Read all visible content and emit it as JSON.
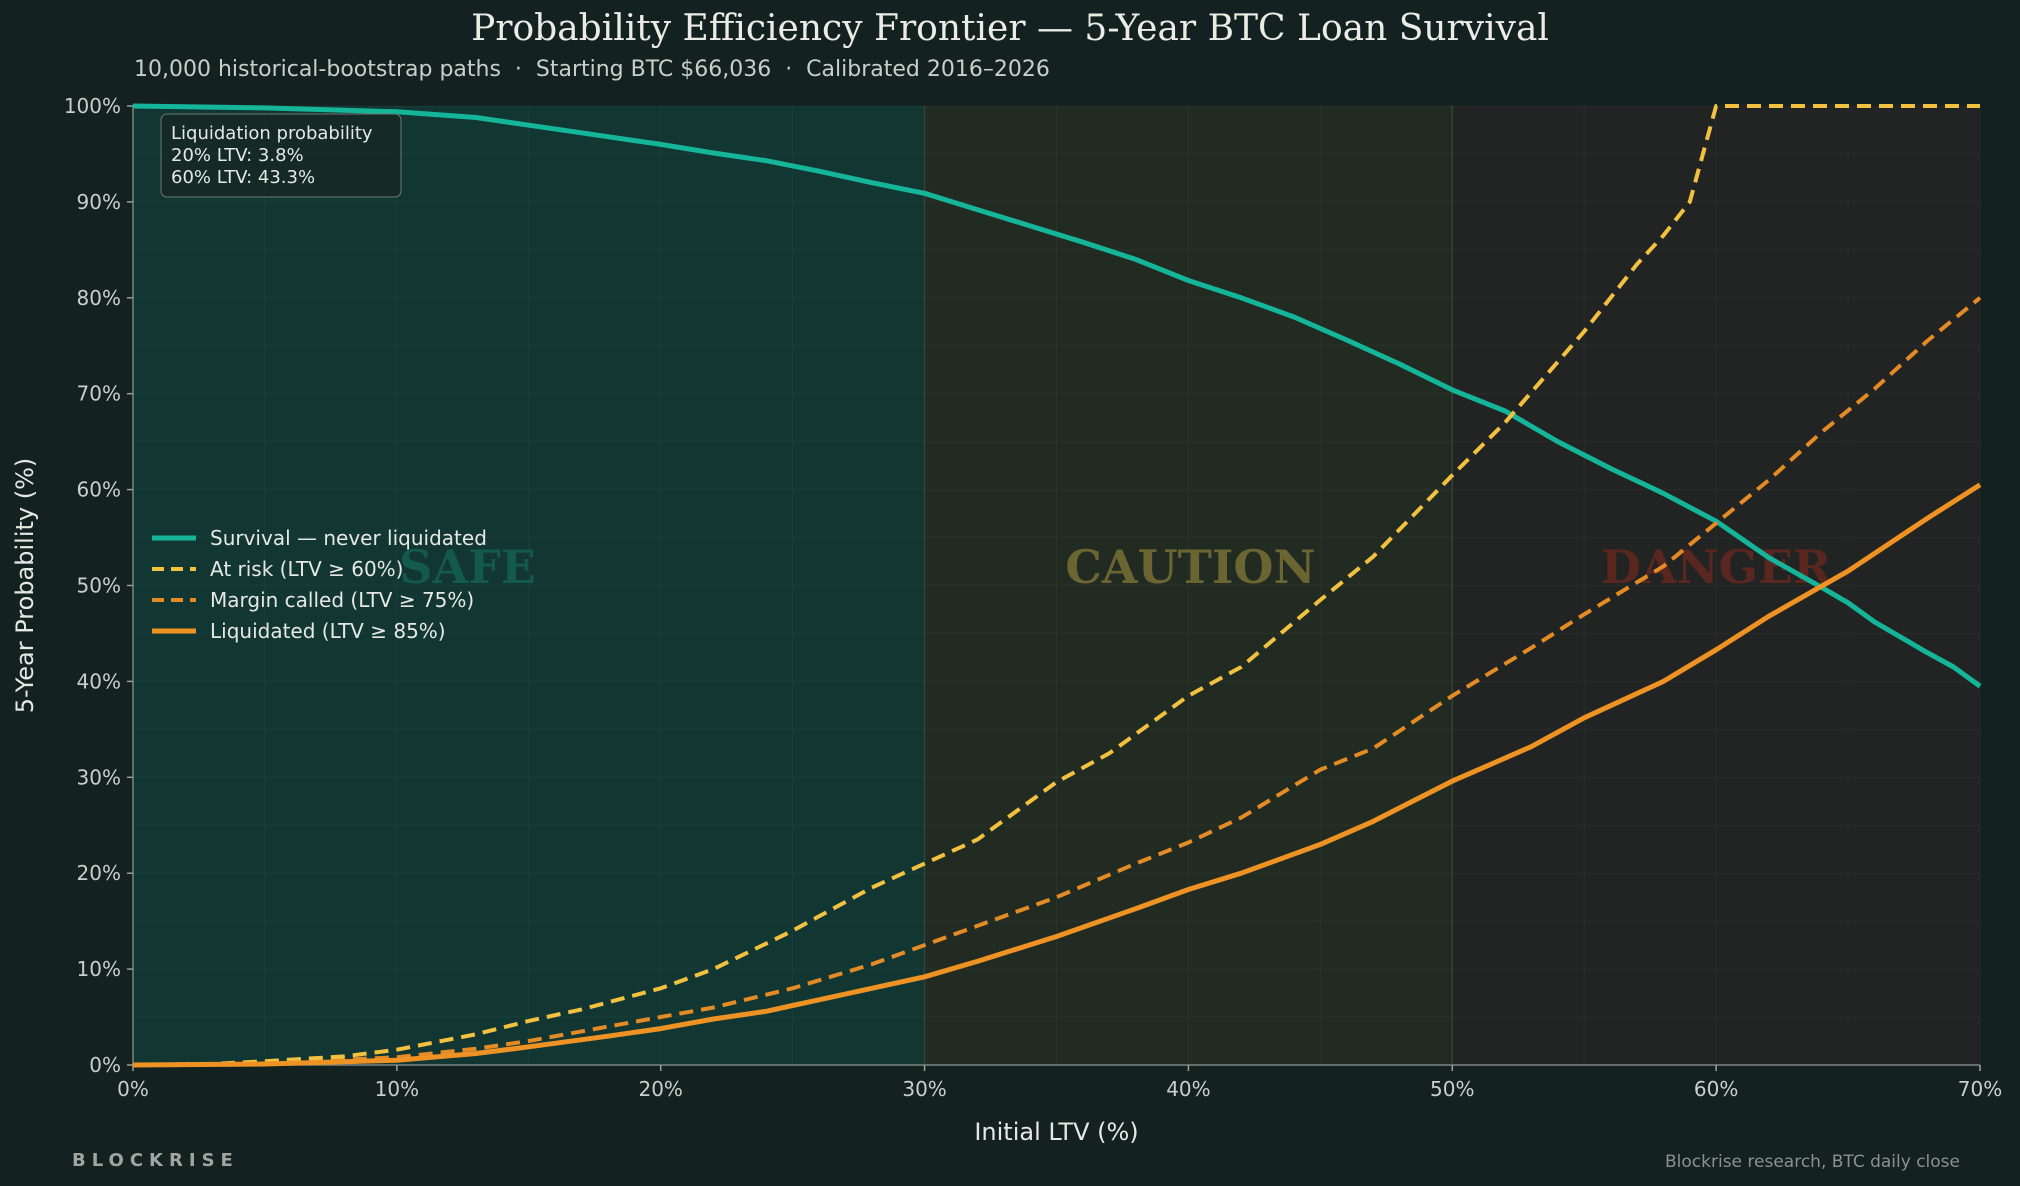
{
  "header": {
    "title": "Probability Efficiency Frontier — 5-Year BTC Loan Survival",
    "subtitle": "10,000 historical-bootstrap paths  ·  Starting BTC $66,036  ·  Calibrated 2016–2026"
  },
  "footer": {
    "brand": "BLOCKRISE",
    "source": "Blockrise research, BTC daily close"
  },
  "annotation": {
    "title": "Liquidation probability",
    "line1": "20% LTV: 3.8%",
    "line2": "60% LTV: 43.3%"
  },
  "colors": {
    "background": "#132120",
    "survival": "#15b59a",
    "at_risk": "#f2c140",
    "margin_called": "#e58b25",
    "liquidated": "#ef9224",
    "safe_zone": "#123631",
    "caution_zone": "#212b22",
    "danger_zone": "#222423"
  },
  "chart_data": {
    "type": "line",
    "title": "Probability Efficiency Frontier — 5-Year BTC Loan Survival",
    "xlabel": "Initial LTV (%)",
    "ylabel": "5-Year Probability (%)",
    "xlim": [
      0,
      70
    ],
    "ylim": [
      0,
      100
    ],
    "grid": true,
    "legend_position": "middle-left",
    "xticks": [
      "0%",
      "10%",
      "20%",
      "30%",
      "40%",
      "50%",
      "60%",
      "70%"
    ],
    "yticks": [
      "0%",
      "10%",
      "20%",
      "30%",
      "40%",
      "50%",
      "60%",
      "70%",
      "80%",
      "90%",
      "100%"
    ],
    "zones": [
      {
        "label": "SAFE",
        "from": 0,
        "to": 30
      },
      {
        "label": "CAUTION",
        "from": 30,
        "to": 50
      },
      {
        "label": "DANGER",
        "from": 50,
        "to": 70
      }
    ],
    "series": [
      {
        "name": "Survival — never liquidated",
        "style": "solid",
        "x": [
          0,
          5,
          10,
          13,
          15,
          18,
          20,
          22,
          24,
          26,
          28,
          30,
          32,
          34,
          36,
          38,
          40,
          42,
          44,
          46,
          48,
          50,
          52,
          54,
          56,
          58,
          60,
          62,
          64,
          65,
          66,
          68,
          69,
          70
        ],
        "y": [
          100,
          99.8,
          99.4,
          98.8,
          98.0,
          96.8,
          96.0,
          95.1,
          94.3,
          93.2,
          92.0,
          90.9,
          89.2,
          87.5,
          85.8,
          84.0,
          81.8,
          80.0,
          78.0,
          75.6,
          73.1,
          70.4,
          68.2,
          65.0,
          62.2,
          59.6,
          56.7,
          52.9,
          49.8,
          48.2,
          46.2,
          43.0,
          41.5,
          39.5
        ]
      },
      {
        "name": "At risk (LTV ≥ 60%)",
        "style": "dashed",
        "x": [
          0,
          3,
          5,
          8,
          10,
          13,
          15,
          17,
          20,
          22,
          25,
          28,
          30,
          32,
          35,
          37,
          40,
          42,
          45,
          47,
          50,
          52,
          55,
          57,
          58,
          59,
          60,
          61,
          65,
          70
        ],
        "y": [
          0,
          0.1,
          0.4,
          0.9,
          1.6,
          3.2,
          4.6,
          5.8,
          8.0,
          10.0,
          14.0,
          18.5,
          21.0,
          23.5,
          29.5,
          32.5,
          38.5,
          41.5,
          48.5,
          53.0,
          61.5,
          67.0,
          76.5,
          83.5,
          86.5,
          90.0,
          100,
          100,
          100,
          100
        ]
      },
      {
        "name": "Margin called (LTV ≥ 75%)",
        "style": "dashed",
        "x": [
          0,
          5,
          10,
          13,
          15,
          18,
          20,
          22,
          25,
          28,
          30,
          32,
          35,
          38,
          40,
          42,
          45,
          47,
          50,
          53,
          55,
          58,
          60,
          62,
          64,
          66,
          68,
          70
        ],
        "y": [
          0,
          0.2,
          0.8,
          1.7,
          2.5,
          4.0,
          5.0,
          6.0,
          8.0,
          10.5,
          12.5,
          14.5,
          17.5,
          21.0,
          23.2,
          25.8,
          30.8,
          33.0,
          38.5,
          43.5,
          47.0,
          52.0,
          56.5,
          61.0,
          66.0,
          70.5,
          75.5,
          80.0
        ]
      },
      {
        "name": "Liquidated (LTV ≥ 85%)",
        "style": "solid",
        "x": [
          0,
          5,
          10,
          13,
          15,
          18,
          20,
          22,
          24,
          25,
          26,
          28,
          30,
          32,
          35,
          38,
          40,
          42,
          45,
          47,
          50,
          53,
          55,
          58,
          60,
          62,
          65,
          68,
          70
        ],
        "y": [
          0,
          0.1,
          0.5,
          1.2,
          1.9,
          3.0,
          3.8,
          4.8,
          5.6,
          6.2,
          6.8,
          8.0,
          9.2,
          10.8,
          13.4,
          16.3,
          18.3,
          20.0,
          23.0,
          25.4,
          29.6,
          33.2,
          36.2,
          40.0,
          43.3,
          46.8,
          51.5,
          57.0,
          60.5
        ]
      }
    ]
  }
}
